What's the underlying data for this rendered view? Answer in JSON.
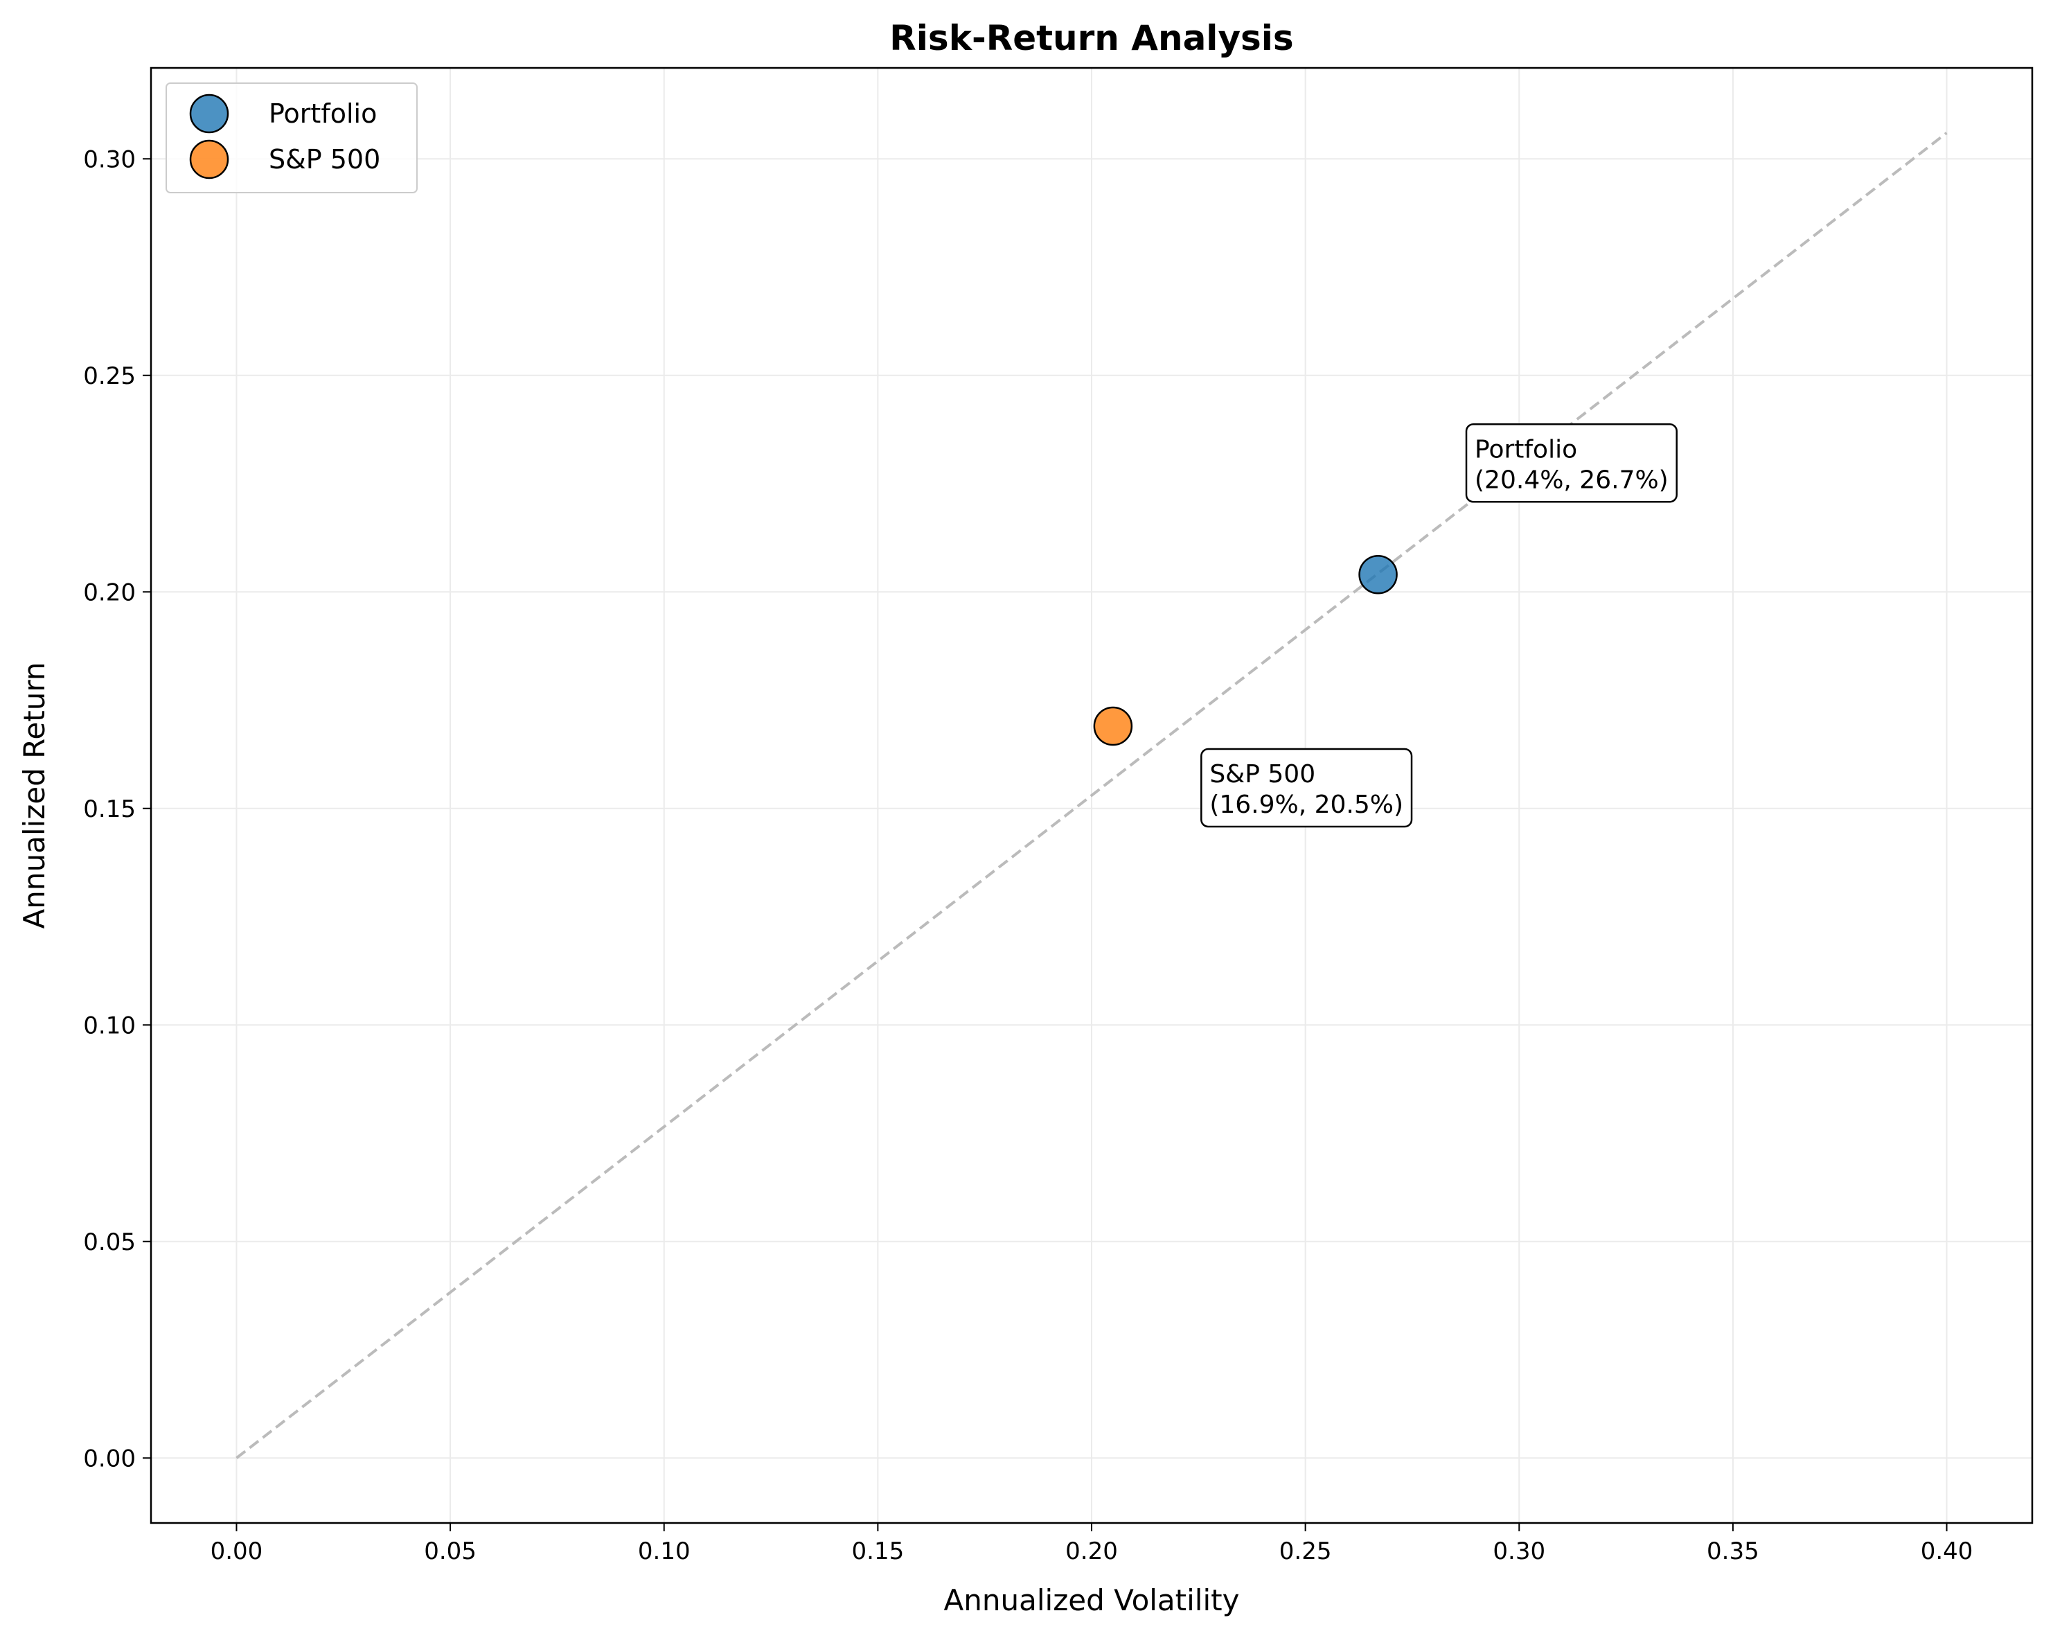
{
  "chart_data": {
    "type": "scatter",
    "title": "Risk-Return Analysis",
    "xlabel": "Annualized Volatility",
    "ylabel": "Annualized Return",
    "xlim": [
      -0.02,
      0.42
    ],
    "ylim": [
      -0.015,
      0.321
    ],
    "xticks": [
      "0.00",
      "0.05",
      "0.10",
      "0.15",
      "0.20",
      "0.25",
      "0.30",
      "0.35",
      "0.40"
    ],
    "yticks": [
      "0.00",
      "0.05",
      "0.10",
      "0.15",
      "0.20",
      "0.25",
      "0.30"
    ],
    "grid": true,
    "legend_position": "upper-left",
    "series": [
      {
        "name": "Portfolio",
        "x": [
          0.267
        ],
        "y": [
          0.204
        ],
        "color": "#1f77b4"
      },
      {
        "name": "S&P 500",
        "x": [
          0.205
        ],
        "y": [
          0.169
        ],
        "color": "#ff7f0e"
      }
    ],
    "reference_line": {
      "x": [
        0.0,
        0.4
      ],
      "y": [
        0.0,
        0.306
      ],
      "style": "dashed",
      "color": "#bbbbbb"
    },
    "annotations": [
      {
        "series": "Portfolio",
        "lines": [
          "Portfolio",
          "(20.4%, 26.7%)"
        ],
        "x": 0.287,
        "y": 0.224
      },
      {
        "series": "S&P 500",
        "lines": [
          "S&P 500",
          "(16.9%, 20.5%)"
        ],
        "x": 0.225,
        "y": 0.149
      }
    ]
  }
}
